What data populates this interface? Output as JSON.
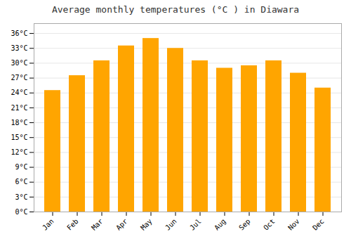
{
  "chart_data": {
    "type": "bar",
    "title": "Average monthly temperatures (°C ) in Diawara",
    "categories": [
      "Jan",
      "Feb",
      "Mar",
      "Apr",
      "May",
      "Jun",
      "Jul",
      "Aug",
      "Sep",
      "Oct",
      "Nov",
      "Dec"
    ],
    "values": [
      24.5,
      27.5,
      30.5,
      33.5,
      35.0,
      33.0,
      30.5,
      29.0,
      29.5,
      30.5,
      28.0,
      25.0
    ],
    "color": "#FFA500",
    "ylim": [
      0,
      38
    ],
    "yticks": [
      {
        "value": 0,
        "label": "0°C"
      },
      {
        "value": 3,
        "label": "3°C"
      },
      {
        "value": 6,
        "label": "6°C"
      },
      {
        "value": 9,
        "label": "9°C"
      },
      {
        "value": 12,
        "label": "12°C"
      },
      {
        "value": 15,
        "label": "15°C"
      },
      {
        "value": 18,
        "label": "18°C"
      },
      {
        "value": 21,
        "label": "21°C"
      },
      {
        "value": 24,
        "label": "24°C"
      },
      {
        "value": 27,
        "label": "27°C"
      },
      {
        "value": 30,
        "label": "30°C"
      },
      {
        "value": 33,
        "label": "33°C"
      },
      {
        "value": 36,
        "label": "36°C"
      }
    ],
    "grid": true
  }
}
